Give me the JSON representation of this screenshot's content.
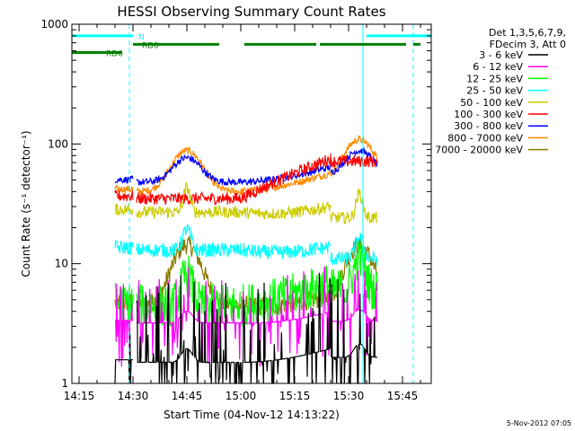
{
  "chart_data": {
    "type": "line",
    "title": "HESSI Observing Summary Count Rates",
    "xlabel": "Start Time (04-Nov-12 14:13:22)",
    "ylabel": "Count Rate (s⁻¹ detector⁻¹)",
    "yscale": "log",
    "ylim": [
      1,
      1000
    ],
    "xlim": [
      "14:13",
      "15:53"
    ],
    "x_ticks": [
      "14:15",
      "14:30",
      "14:45",
      "15:00",
      "15:15",
      "15:30",
      "15:45"
    ],
    "y_ticks": [
      "1",
      "10",
      "100",
      "1000"
    ],
    "legend": {
      "position": "top-right",
      "header_lines": [
        "Det 1,3,5,6,7,9,",
        "FDecim 3, Att 0"
      ]
    },
    "series": [
      {
        "name": "3 - 6 keV",
        "color": "#000000",
        "level_day": 1.5,
        "level_night": 1.5,
        "peak": 1.3,
        "peak_width": 2.0,
        "noise": 0.35,
        "spiky": true
      },
      {
        "name": "6 - 12 keV",
        "color": "#ff00ff",
        "level_day": 3.2,
        "level_night": 3.0,
        "peak": 1.25,
        "peak_width": 2.2,
        "noise": 0.2,
        "spiky": true
      },
      {
        "name": "12 - 25 keV",
        "color": "#00ff00",
        "level_day": 4.5,
        "level_night": 5.5,
        "peak": 1.8,
        "peak_width": 2.0,
        "noise": 0.18,
        "spiky": false
      },
      {
        "name": "25 - 50 keV",
        "color": "#00ffff",
        "level_day": 13,
        "level_night": 10,
        "peak": 1.5,
        "peak_width": 1.5,
        "noise": 0.06,
        "spiky": false
      },
      {
        "name": "50 - 100 keV",
        "color": "#cccc00",
        "level_day": 27,
        "level_night": 22,
        "peak": 1.6,
        "peak_width": 1.2,
        "noise": 0.05,
        "spiky": false
      },
      {
        "name": "100 - 300 keV",
        "color": "#ff0000",
        "level_day": 35,
        "level_night": 65,
        "peak": 1.0,
        "peak_width": 3.0,
        "noise": 0.05,
        "spiky": false
      },
      {
        "name": "300 - 800 keV",
        "color": "#0000ff",
        "level_day": 48,
        "level_night": 50,
        "peak": 1.6,
        "peak_width": 5.0,
        "noise": 0.03,
        "spiky": false
      },
      {
        "name": "800 - 7000 keV",
        "color": "#ff8c00",
        "level_day": 40,
        "level_night": 45,
        "peak": 2.2,
        "peak_width": 5.5,
        "noise": 0.03,
        "spiky": false
      },
      {
        "name": "7000 - 20000 keV",
        "color": "#8b7a00",
        "level_day": 4.5,
        "level_night": 4.0,
        "peak": 3.2,
        "peak_width": 5.0,
        "noise": 0.08,
        "spiky": false
      }
    ],
    "flags": [
      {
        "label": "N",
        "color": "#00ffff",
        "level": 800,
        "segments": [
          [
            "14:13",
            "14:30"
          ],
          [
            "15:35",
            "15:53"
          ]
        ]
      },
      {
        "label": "RD0",
        "color": "#008000",
        "level": 680,
        "segments": [
          [
            "14:30",
            "14:54"
          ],
          [
            "15:01",
            "15:21"
          ],
          [
            "15:22",
            "15:46"
          ],
          [
            "15:48",
            "15:50"
          ]
        ]
      },
      {
        "label": "RD6",
        "color": "#008000",
        "level": 580,
        "segments": [
          [
            "14:13",
            "14:27"
          ]
        ]
      }
    ],
    "saa_lines": [
      {
        "time": "14:13",
        "style": "solid"
      },
      {
        "time": "14:29",
        "style": "dashed"
      },
      {
        "time": "15:34",
        "style": "solid"
      },
      {
        "time": "15:48",
        "style": "dashed"
      }
    ],
    "data_segments": [
      {
        "start": "14:25",
        "end": "14:30",
        "type": "day"
      },
      {
        "start": "14:31",
        "end": "15:00",
        "type": "flare",
        "peak_time": "14:45"
      },
      {
        "start": "15:00",
        "end": "15:25",
        "type": "rise"
      },
      {
        "start": "15:25",
        "end": "15:38",
        "type": "flare",
        "peak_time": "15:33"
      }
    ]
  },
  "footer": {
    "date_stamp": "5-Nov-2012 07:05"
  }
}
